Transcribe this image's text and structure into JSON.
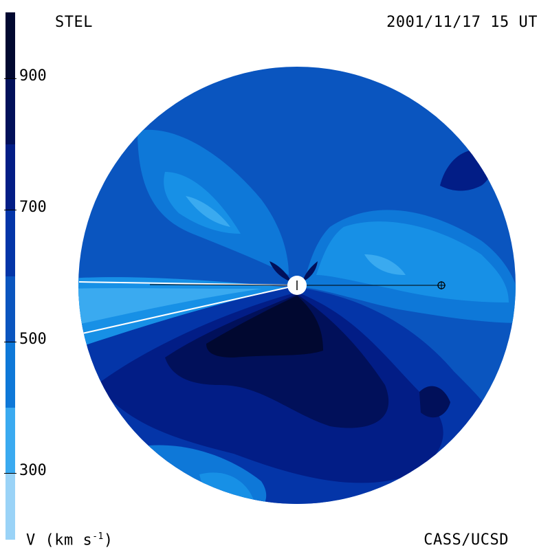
{
  "header": {
    "title_left": "STEL",
    "title_right": "2001/11/17 15 UT"
  },
  "footer": {
    "units_main": "V (km s",
    "units_sup": "-1",
    "units_end": ")",
    "credit": "CASS/UCSD"
  },
  "colorbar": {
    "ticks": [
      "900",
      "700",
      "500",
      "300"
    ],
    "levels": [
      {
        "min": 200,
        "max": 300,
        "color": "#9ad3f7"
      },
      {
        "min": 300,
        "max": 400,
        "color": "#3aaaf0"
      },
      {
        "min": 400,
        "max": 500,
        "color": "#0e78d8"
      },
      {
        "min": 500,
        "max": 600,
        "color": "#0a55bf"
      },
      {
        "min": 600,
        "max": 700,
        "color": "#0435a8"
      },
      {
        "min": 700,
        "max": 800,
        "color": "#021d86"
      },
      {
        "min": 800,
        "max": 900,
        "color": "#01105a"
      },
      {
        "min": 900,
        "max": 1000,
        "color": "#010830"
      }
    ]
  },
  "colors": {
    "c1": "#9ad3f7",
    "c2": "#3aaaf0",
    "c3": "#1790e6",
    "c4": "#0e78d8",
    "c5": "#0a55bf",
    "c6": "#0435a8",
    "c7": "#021d86",
    "c8": "#01105a",
    "c9": "#010830"
  }
}
